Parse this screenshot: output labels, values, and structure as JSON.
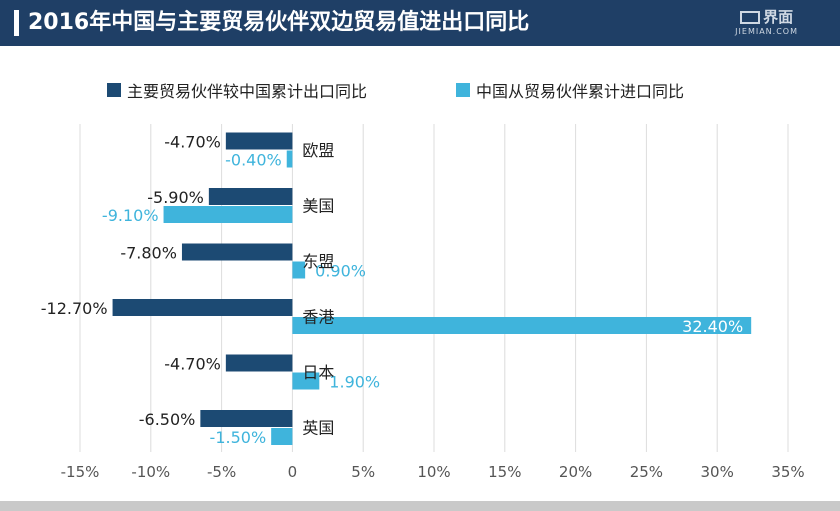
{
  "header": {
    "title": "2016年中国与主要贸易伙伴双边贸易值进出口同比",
    "logo_text": "界面",
    "logo_sub": "JIEMIAN.COM"
  },
  "colors": {
    "header_bg": "#1f3f66",
    "export": "#1c4a73",
    "import": "#3fb4dc",
    "grid": "#dcdcdc"
  },
  "chart_data": {
    "type": "bar",
    "orientation": "horizontal",
    "title": "2016年中国与主要贸易伙伴双边贸易值进出口同比",
    "categories": [
      "欧盟",
      "美国",
      "东盟",
      "香港",
      "日本",
      "英国"
    ],
    "series": [
      {
        "name": "主要贸易伙伴较中国累计出口同比",
        "values": [
          -4.7,
          -5.9,
          -7.8,
          -12.7,
          -4.7,
          -6.5
        ],
        "labels": [
          "-4.70%",
          "-5.90%",
          "-7.80%",
          "-12.70%",
          "-4.70%",
          "-6.50%"
        ],
        "color": "#1c4a73"
      },
      {
        "name": "中国从贸易伙伴累计进口同比",
        "values": [
          -0.4,
          -9.1,
          0.9,
          32.4,
          1.9,
          -1.5
        ],
        "labels": [
          "-0.40%",
          "-9.10%",
          "0.90%",
          "32.40%",
          "1.90%",
          "-1.50%"
        ],
        "color": "#3fb4dc"
      }
    ],
    "xlim": [
      -15,
      35
    ],
    "xticks": [
      -15,
      -10,
      -5,
      0,
      5,
      10,
      15,
      20,
      25,
      30,
      35
    ],
    "xtick_labels": [
      "-15%",
      "-10%",
      "-5%",
      "0",
      "5%",
      "10%",
      "15%",
      "20%",
      "25%",
      "30%",
      "35%"
    ],
    "grid": true,
    "legend_position": "top"
  }
}
